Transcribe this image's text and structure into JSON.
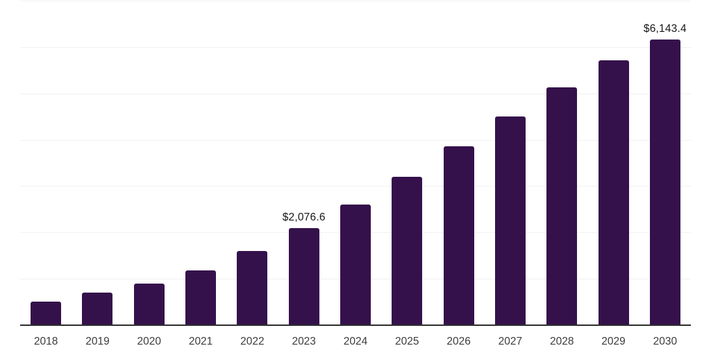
{
  "chart_data": {
    "type": "bar",
    "title": "",
    "xlabel": "",
    "ylabel": "",
    "categories": [
      "2018",
      "2019",
      "2020",
      "2021",
      "2022",
      "2023",
      "2024",
      "2025",
      "2026",
      "2027",
      "2028",
      "2029",
      "2030"
    ],
    "values": [
      490,
      684,
      878,
      1160,
      1592,
      2076.6,
      2593,
      3188,
      3842,
      4488,
      5117,
      5693,
      6143.4
    ],
    "value_labels": {
      "2023": "$2,076.6",
      "2030": "$6,143.4"
    },
    "ylim": [
      0,
      7000
    ],
    "gridline_step": 1000,
    "grid": true,
    "legend": false,
    "colors": {
      "bar": "#35114C",
      "axis_line": "#2e2e2e",
      "gridline": "#f1f1f1",
      "tick_label": "#3c3c3c",
      "value_label": "#161616"
    }
  }
}
